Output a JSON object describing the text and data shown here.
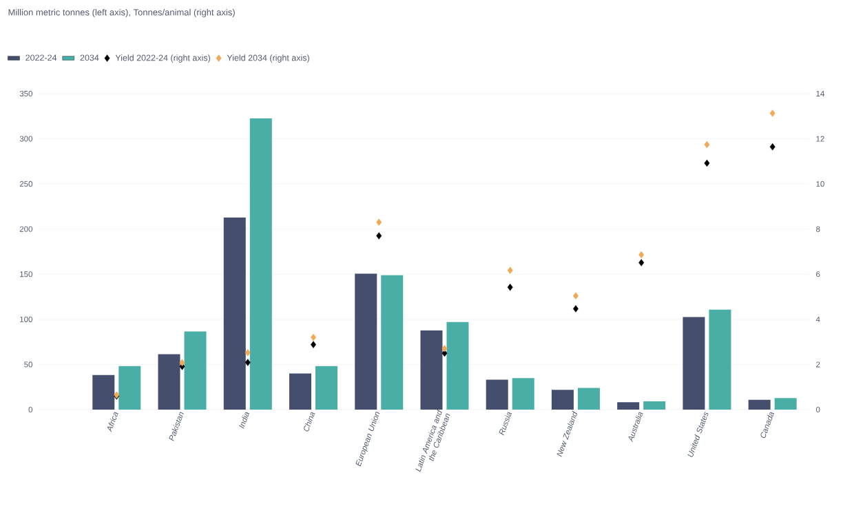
{
  "chart_data": {
    "type": "bar",
    "title": "Million metric tonnes (left axis), Tonnes/animal (right axis)",
    "categories": [
      "Africa",
      "Pakistan",
      "India",
      "China",
      "European Union",
      "Latin America and the Caribbean",
      "Russia",
      "New Zealand",
      "Australia",
      "United States",
      "Canada"
    ],
    "series": [
      {
        "name": "2022-24",
        "color": "#464e6e",
        "values": [
          38.3,
          61.3,
          212.7,
          40.1,
          150.6,
          87.7,
          33.1,
          21.9,
          8.2,
          102.6,
          10.9
        ]
      },
      {
        "name": "2034",
        "color": "#48aea6",
        "values": [
          48.3,
          86.6,
          322.6,
          48.3,
          148.8,
          97.1,
          34.9,
          24.0,
          9.1,
          110.8,
          12.8
        ]
      },
      {
        "name": "Yield 2022-24 (right axis)",
        "type": "scatter",
        "axis": "y2",
        "marker": "diamond",
        "color": "#000000",
        "values": [
          0.6,
          1.91,
          2.09,
          2.88,
          7.7,
          2.5,
          5.42,
          4.47,
          6.51,
          10.92,
          11.64
        ]
      },
      {
        "name": "Yield 2034 (right axis)",
        "type": "scatter",
        "axis": "y2",
        "marker": "diamond",
        "color": "#f0a957",
        "values": [
          0.65,
          2.08,
          2.52,
          3.2,
          8.3,
          2.71,
          6.17,
          5.04,
          6.86,
          11.74,
          13.13
        ]
      }
    ],
    "ylim": [
      0,
      350
    ],
    "yticks": [
      0,
      50,
      100,
      150,
      200,
      250,
      300,
      350
    ],
    "y2lim": [
      0,
      14
    ],
    "y2ticks": [
      0,
      2,
      4,
      6,
      8,
      10,
      12,
      14
    ],
    "grid": "y",
    "legend": "top left"
  }
}
